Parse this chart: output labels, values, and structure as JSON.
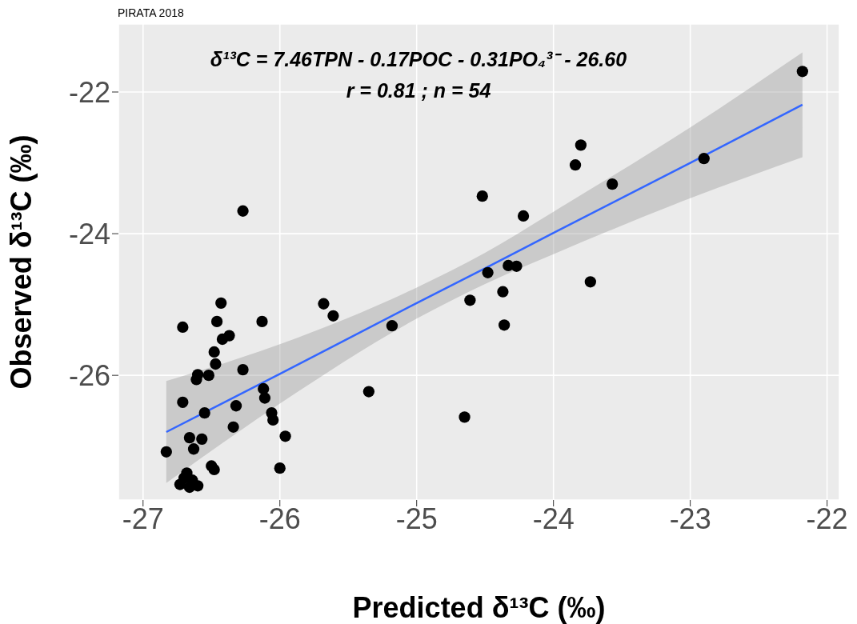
{
  "chart_data": {
    "type": "scatter",
    "title": "PIRATA 2018",
    "xlabel": "Predicted δ¹³C (‰)",
    "ylabel": "Observed δ¹³C (‰)",
    "annotations": [
      "δ¹³C = 7.46TPN - 0.17POC - 0.31PO₄³⁻ - 26.60",
      "r = 0.81 ; n = 54"
    ],
    "xlim": [
      -27.18,
      -21.91
    ],
    "ylim": [
      -27.76,
      -21.04
    ],
    "xticks": [
      -27,
      -26,
      -25,
      -24,
      -23,
      -22
    ],
    "yticks": [
      -26,
      -24,
      -22
    ],
    "grid": true,
    "series": [
      {
        "marker": "circle",
        "color": "#000000",
        "x": [
          -22.18,
          -22.9,
          -23.8,
          -23.84,
          -23.57,
          -24.52,
          -24.22,
          -26.27,
          -24.48,
          -24.33,
          -24.27,
          -23.73,
          -24.61,
          -24.37,
          -24.36,
          -24.65,
          -25.68,
          -25.61,
          -25.18,
          -25.35,
          -26.43,
          -26.71,
          -26.46,
          -26.13,
          -26.42,
          -26.37,
          -26.48,
          -26.47,
          -26.6,
          -26.61,
          -26.52,
          -26.27,
          -26.71,
          -26.55,
          -26.32,
          -26.12,
          -26.11,
          -26.06,
          -26.05,
          -26.34,
          -25.96,
          -26.66,
          -26.57,
          -26.83,
          -26.63,
          -26.5,
          -26.48,
          -26.0,
          -26.68,
          -26.7,
          -26.73,
          -26.64,
          -26.66,
          -26.6
        ],
        "values": [
          -21.71,
          -22.94,
          -22.75,
          -23.03,
          -23.3,
          -23.47,
          -23.75,
          -23.68,
          -24.55,
          -24.45,
          -24.46,
          -24.68,
          -24.94,
          -24.82,
          -25.29,
          -26.59,
          -24.99,
          -25.16,
          -25.3,
          -26.23,
          -24.98,
          -25.32,
          -25.24,
          -25.24,
          -25.49,
          -25.44,
          -25.67,
          -25.84,
          -25.99,
          -26.06,
          -26.0,
          -25.92,
          -26.38,
          -26.53,
          -26.43,
          -26.19,
          -26.32,
          -26.53,
          -26.63,
          -26.73,
          -26.86,
          -26.88,
          -26.9,
          -27.08,
          -27.04,
          -27.28,
          -27.33,
          -27.31,
          -27.38,
          -27.45,
          -27.54,
          -27.48,
          -27.58,
          -27.56
        ]
      },
      {
        "type": "line",
        "color": "#3366ff",
        "x": [
          -26.83,
          -26,
          -25,
          -24.5,
          -24,
          -23,
          -22.18
        ],
        "values": [
          -26.8,
          -25.98,
          -24.98,
          -24.49,
          -23.99,
          -23.0,
          -22.18
        ],
        "lower": [
          -27.52,
          -26.4,
          -25.2,
          -24.71,
          -24.29,
          -23.5,
          -22.92
        ],
        "upper": [
          -26.08,
          -25.56,
          -24.76,
          -24.27,
          -23.69,
          -22.5,
          -21.44
        ]
      }
    ]
  }
}
